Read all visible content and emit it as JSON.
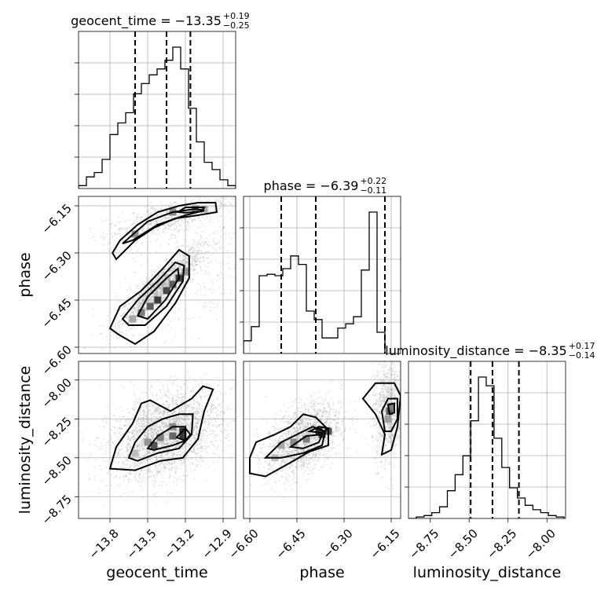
{
  "chart_data": {
    "type": "corner",
    "parameters": [
      "geocent_time",
      "phase",
      "luminosity_distance"
    ],
    "axis_labels": {
      "geocent_time": "geocent_time",
      "phase": "phase",
      "luminosity_distance": "luminosity_distance"
    },
    "titles": [
      {
        "param": "geocent_time",
        "text": "geocent_time = −13.35",
        "sup": "+0.19",
        "sub": "−0.25"
      },
      {
        "param": "phase",
        "text": "phase = −6.39",
        "sup": "+0.22",
        "sub": "−0.11"
      },
      {
        "param": "luminosity_distance",
        "text": "luminosity_distance = −8.35",
        "sup": "+0.17",
        "sub": "−0.14"
      }
    ],
    "ranges": {
      "geocent_time": [
        -14.05,
        -12.8
      ],
      "phase": [
        -6.62,
        -6.12
      ],
      "luminosity_distance": [
        -8.89,
        -7.88
      ]
    },
    "ticks": {
      "geocent_time": {
        "values": [
          -13.8,
          -13.5,
          -13.2,
          -12.9
        ],
        "labels": [
          "−13.8",
          "−13.5",
          "−13.2",
          "−12.9"
        ]
      },
      "phase": {
        "values": [
          -6.6,
          -6.45,
          -6.3,
          -6.15
        ],
        "labels": [
          "−6.60",
          "−6.45",
          "−6.30",
          "−6.15"
        ]
      },
      "luminosity_distance": {
        "values": [
          -8.75,
          -8.5,
          -8.25,
          -8.0
        ],
        "labels": [
          "−8.75",
          "−8.50",
          "−8.25",
          "−8.00"
        ]
      }
    },
    "quantiles": {
      "geocent_time": [
        -13.6,
        -13.35,
        -13.16
      ],
      "phase": [
        -6.5,
        -6.39,
        -6.17
      ],
      "luminosity_distance": [
        -8.49,
        -8.35,
        -8.18
      ]
    },
    "histograms": {
      "geocent_time": {
        "edges_start": -14.05,
        "bin_width": 0.0625,
        "counts": [
          0.02,
          0.08,
          0.11,
          0.2,
          0.37,
          0.45,
          0.52,
          0.65,
          0.72,
          0.78,
          0.82,
          0.88,
          0.97,
          0.82,
          0.55,
          0.32,
          0.18,
          0.13,
          0.06,
          0.02
        ]
      },
      "phase": {
        "edges_start": -6.62,
        "bin_width": 0.025,
        "counts": [
          0.09,
          0.19,
          0.55,
          0.56,
          0.55,
          0.6,
          0.69,
          0.63,
          0.3,
          0.24,
          0.11,
          0.11,
          0.18,
          0.21,
          0.26,
          0.59,
          1.0,
          0.15
        ]
      },
      "luminosity_distance": {
        "edges_start": -8.89,
        "bin_width": 0.05,
        "counts": [
          0.0,
          0.01,
          0.02,
          0.04,
          0.08,
          0.19,
          0.3,
          0.43,
          0.67,
          0.97,
          0.91,
          0.55,
          0.35,
          0.21,
          0.14,
          0.09,
          0.06,
          0.04,
          0.02,
          0.01
        ]
      }
    },
    "contours": {
      "phase_vs_geocent_time": [
        [
          [
            -13.73,
            -6.56
          ],
          [
            -13.8,
            -6.54
          ],
          [
            -13.72,
            -6.47
          ],
          [
            -13.55,
            -6.42
          ],
          [
            -13.38,
            -6.35
          ],
          [
            -13.25,
            -6.29
          ],
          [
            -13.17,
            -6.31
          ],
          [
            -13.17,
            -6.38
          ],
          [
            -13.28,
            -6.46
          ],
          [
            -13.45,
            -6.55
          ],
          [
            -13.6,
            -6.59
          ],
          [
            -13.73,
            -6.56
          ]
        ],
        [
          [
            -13.65,
            -6.53
          ],
          [
            -13.7,
            -6.51
          ],
          [
            -13.58,
            -6.45
          ],
          [
            -13.42,
            -6.39
          ],
          [
            -13.28,
            -6.33
          ],
          [
            -13.21,
            -6.34
          ],
          [
            -13.22,
            -6.39
          ],
          [
            -13.35,
            -6.47
          ],
          [
            -13.52,
            -6.53
          ],
          [
            -13.65,
            -6.53
          ]
        ],
        [
          [
            -13.58,
            -6.5
          ],
          [
            -13.5,
            -6.44
          ],
          [
            -13.35,
            -6.38
          ],
          [
            -13.26,
            -6.35
          ],
          [
            -13.25,
            -6.38
          ],
          [
            -13.36,
            -6.45
          ],
          [
            -13.5,
            -6.51
          ],
          [
            -13.58,
            -6.5
          ]
        ],
        [
          [
            -13.78,
            -6.3
          ],
          [
            -13.72,
            -6.26
          ],
          [
            -13.58,
            -6.21
          ],
          [
            -13.42,
            -6.17
          ],
          [
            -13.25,
            -6.15
          ],
          [
            -13.1,
            -6.14
          ],
          [
            -12.96,
            -6.14
          ],
          [
            -12.95,
            -6.17
          ],
          [
            -13.1,
            -6.18
          ],
          [
            -13.28,
            -6.19
          ],
          [
            -13.45,
            -6.22
          ],
          [
            -13.6,
            -6.26
          ],
          [
            -13.75,
            -6.32
          ],
          [
            -13.78,
            -6.3
          ]
        ],
        [
          [
            -13.7,
            -6.27
          ],
          [
            -13.5,
            -6.2
          ],
          [
            -13.3,
            -6.17
          ],
          [
            -13.12,
            -6.16
          ],
          [
            -13.05,
            -6.165
          ],
          [
            -13.2,
            -6.18
          ],
          [
            -13.42,
            -6.21
          ],
          [
            -13.62,
            -6.26
          ],
          [
            -13.7,
            -6.27
          ]
        ],
        [
          [
            -13.26,
            -6.17
          ],
          [
            -13.2,
            -6.155
          ],
          [
            -13.05,
            -6.155
          ],
          [
            -13.07,
            -6.168
          ],
          [
            -13.2,
            -6.172
          ],
          [
            -13.26,
            -6.17
          ]
        ]
      ],
      "luminosity_distance_vs_geocent_time": [
        [
          [
            -13.8,
            -8.57
          ],
          [
            -13.75,
            -8.43
          ],
          [
            -13.62,
            -8.28
          ],
          [
            -13.55,
            -8.15
          ],
          [
            -13.48,
            -8.13
          ],
          [
            -13.32,
            -8.2
          ],
          [
            -13.15,
            -8.12
          ],
          [
            -13.06,
            -8.04
          ],
          [
            -12.98,
            -8.06
          ],
          [
            -13.05,
            -8.2
          ],
          [
            -13.1,
            -8.38
          ],
          [
            -13.22,
            -8.5
          ],
          [
            -13.4,
            -8.52
          ],
          [
            -13.6,
            -8.58
          ],
          [
            -13.8,
            -8.57
          ]
        ],
        [
          [
            -13.65,
            -8.5
          ],
          [
            -13.6,
            -8.4
          ],
          [
            -13.5,
            -8.3
          ],
          [
            -13.38,
            -8.25
          ],
          [
            -13.25,
            -8.22
          ],
          [
            -13.14,
            -8.22
          ],
          [
            -13.15,
            -8.35
          ],
          [
            -13.25,
            -8.44
          ],
          [
            -13.42,
            -8.47
          ],
          [
            -13.58,
            -8.52
          ],
          [
            -13.65,
            -8.5
          ]
        ],
        [
          [
            -13.5,
            -8.44
          ],
          [
            -13.42,
            -8.36
          ],
          [
            -13.3,
            -8.3
          ],
          [
            -13.2,
            -8.3
          ],
          [
            -13.2,
            -8.39
          ],
          [
            -13.3,
            -8.42
          ],
          [
            -13.45,
            -8.45
          ],
          [
            -13.5,
            -8.44
          ]
        ],
        [
          [
            -13.27,
            -8.37
          ],
          [
            -13.2,
            -8.31
          ],
          [
            -13.16,
            -8.35
          ],
          [
            -13.2,
            -8.39
          ],
          [
            -13.27,
            -8.37
          ]
        ]
      ],
      "luminosity_distance_vs_phase": [
        [
          [
            -6.6,
            -8.5
          ],
          [
            -6.58,
            -8.4
          ],
          [
            -6.52,
            -8.35
          ],
          [
            -6.47,
            -8.3
          ],
          [
            -6.43,
            -8.22
          ],
          [
            -6.39,
            -8.24
          ],
          [
            -6.35,
            -8.32
          ],
          [
            -6.35,
            -8.42
          ],
          [
            -6.41,
            -8.46
          ],
          [
            -6.47,
            -8.53
          ],
          [
            -6.55,
            -8.62
          ],
          [
            -6.6,
            -8.6
          ],
          [
            -6.6,
            -8.5
          ]
        ],
        [
          [
            -6.55,
            -8.5
          ],
          [
            -6.5,
            -8.4
          ],
          [
            -6.45,
            -8.35
          ],
          [
            -6.4,
            -8.3
          ],
          [
            -6.36,
            -8.33
          ],
          [
            -6.37,
            -8.42
          ],
          [
            -6.43,
            -8.47
          ],
          [
            -6.5,
            -8.5
          ],
          [
            -6.55,
            -8.5
          ]
        ],
        [
          [
            -6.47,
            -8.43
          ],
          [
            -6.42,
            -8.36
          ],
          [
            -6.37,
            -8.35
          ],
          [
            -6.38,
            -8.4
          ],
          [
            -6.43,
            -8.44
          ],
          [
            -6.47,
            -8.43
          ]
        ],
        [
          [
            -6.41,
            -8.33
          ],
          [
            -6.38,
            -8.3
          ],
          [
            -6.35,
            -8.31
          ],
          [
            -6.37,
            -8.34
          ],
          [
            -6.41,
            -8.33
          ]
        ],
        [
          [
            -6.18,
            -8.48
          ],
          [
            -6.17,
            -8.35
          ],
          [
            -6.2,
            -8.22
          ],
          [
            -6.24,
            -8.12
          ],
          [
            -6.2,
            -8.02
          ],
          [
            -6.14,
            -8.02
          ],
          [
            -6.12,
            -8.1
          ],
          [
            -6.13,
            -8.3
          ],
          [
            -6.15,
            -8.45
          ],
          [
            -6.18,
            -8.48
          ]
        ],
        [
          [
            -6.17,
            -8.33
          ],
          [
            -6.18,
            -8.2
          ],
          [
            -6.16,
            -8.12
          ],
          [
            -6.13,
            -8.12
          ],
          [
            -6.13,
            -8.25
          ],
          [
            -6.15,
            -8.33
          ],
          [
            -6.17,
            -8.33
          ]
        ],
        [
          [
            -6.155,
            -8.22
          ],
          [
            -6.16,
            -8.16
          ],
          [
            -6.14,
            -8.15
          ],
          [
            -6.14,
            -8.21
          ],
          [
            -6.155,
            -8.22
          ]
        ]
      ]
    }
  }
}
